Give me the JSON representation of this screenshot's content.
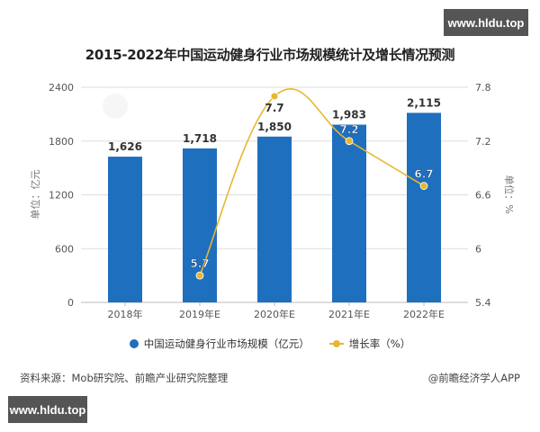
{
  "watermarks": {
    "top_right": "www.hldu.top",
    "bottom_left": "www.hldu.top"
  },
  "title": "2015-2022年中国运动健身行业市场规模统计及增长情况预测",
  "colors": {
    "bar": "#1f6fbf",
    "line": "#e6b830",
    "grid": "#dddddd",
    "axis_text": "#555555"
  },
  "legend": {
    "bar_label": "中国运动健身行业市场规模（亿元）",
    "line_label": "增长率（%）"
  },
  "footer": {
    "source": "资料来源：Mob研究院、前瞻产业研究院整理",
    "credit": "@前瞻经济学人APP"
  },
  "chart_data": {
    "type": "bar",
    "title": "2015-2022年中国运动健身行业市场规模统计及增长情况预测",
    "categories": [
      "2018年",
      "2019年E",
      "2020年E",
      "2021年E",
      "2022年E"
    ],
    "series": [
      {
        "name": "中国运动健身行业市场规模（亿元）",
        "type": "bar",
        "axis": "left",
        "values": [
          1626,
          1718,
          1850,
          1983,
          2115
        ],
        "labels": [
          "1,626",
          "1,718",
          "1,850",
          "1,983",
          "2,115"
        ]
      },
      {
        "name": "增长率（%）",
        "type": "line",
        "axis": "right",
        "smooth": true,
        "values": [
          null,
          5.7,
          7.7,
          7.2,
          6.7
        ],
        "labels": [
          "",
          "5.7",
          "7.7",
          "7.2",
          "6.7"
        ]
      }
    ],
    "ylabel": "单位：亿元",
    "ylabel_right": "单位：%",
    "ylim": [
      0,
      2400
    ],
    "yticks": [
      0,
      600,
      1200,
      1800,
      2400
    ],
    "ylim_right": [
      5.4,
      7.8
    ],
    "yticks_right": [
      5.4,
      6,
      6.6,
      7.2,
      7.8
    ],
    "ytick_labels_right": [
      "5.4",
      "6",
      "6.6",
      "7.2",
      "7.8"
    ],
    "grid": true,
    "legend_position": "bottom"
  }
}
